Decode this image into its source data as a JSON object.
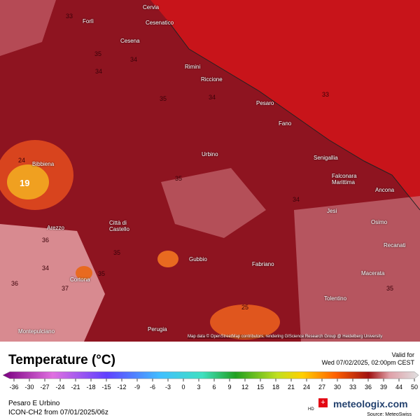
{
  "map": {
    "cities": [
      "Cervia",
      "Cesenatico",
      "Forlì",
      "Cesena",
      "Rimini",
      "Riccione",
      "Pesaro",
      "Fano",
      "Urbino",
      "Senigallia",
      "Bibbiena",
      "Falconara\nMarittima",
      "Ancona",
      "Jesi",
      "Arezzo",
      "Osimo",
      "Città di\nCastello",
      "Recanati",
      "Gubbio",
      "Fabriano",
      "Macerata",
      "Cortona",
      "Tolentino",
      "Perugia",
      "Montepulciano"
    ],
    "contour_labels": [
      35,
      34,
      34,
      35,
      33,
      24,
      19,
      36,
      35,
      34,
      35,
      36,
      37,
      35,
      34,
      35,
      25,
      33,
      34
    ],
    "attribution": "Map data © OpenStreetMap contributors, rendering GIScience Research Group @ Heidelberg University"
  },
  "legend": {
    "title": "Temperature (°C)",
    "valid_for": "Valid for",
    "valid_time": "Wed 07/02/2025, 02:00pm CEST",
    "ticks": [
      -36,
      -30,
      -27,
      -24,
      -21,
      -18,
      -15,
      -12,
      -9,
      -6,
      -3,
      0,
      3,
      6,
      9,
      12,
      15,
      18,
      21,
      24,
      27,
      30,
      33,
      36,
      39,
      44,
      50
    ]
  },
  "footer": {
    "region": "Pesaro E Urbino",
    "model": "ICON-CH2 from 07/01/2025/06z",
    "hd": "HD",
    "brand": "meteologix.com",
    "source": "Source: MeteoSwiss"
  }
}
